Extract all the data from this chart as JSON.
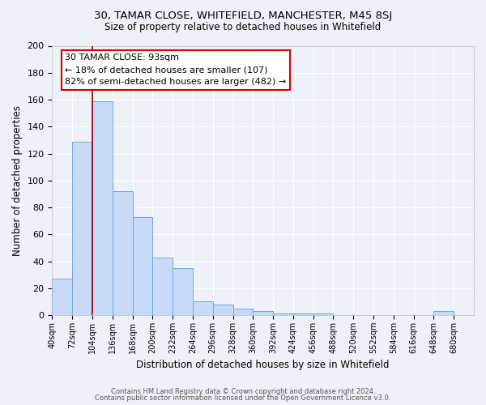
{
  "title1": "30, TAMAR CLOSE, WHITEFIELD, MANCHESTER, M45 8SJ",
  "title2": "Size of property relative to detached houses in Whitefield",
  "xlabel": "Distribution of detached houses by size in Whitefield",
  "ylabel": "Number of detached properties",
  "bar_color": "#c9daf8",
  "bar_edge_color": "#6fa8dc",
  "background_color": "#eef1f8",
  "grid_color": "#ffffff",
  "bins": [
    40,
    72,
    104,
    136,
    168,
    200,
    232,
    264,
    296,
    328,
    360,
    392,
    424,
    456,
    488,
    520,
    552,
    584,
    616,
    648,
    680,
    712
  ],
  "bin_labels": [
    "40sqm",
    "72sqm",
    "104sqm",
    "136sqm",
    "168sqm",
    "200sqm",
    "232sqm",
    "264sqm",
    "296sqm",
    "328sqm",
    "360sqm",
    "392sqm",
    "424sqm",
    "456sqm",
    "488sqm",
    "520sqm",
    "552sqm",
    "584sqm",
    "616sqm",
    "648sqm",
    "680sqm"
  ],
  "values": [
    27,
    129,
    159,
    92,
    73,
    43,
    35,
    10,
    8,
    5,
    3,
    1,
    1,
    1,
    0,
    0,
    0,
    0,
    0,
    3,
    0
  ],
  "vline_x": 104,
  "vline_color": "#990000",
  "annotation_title": "30 TAMAR CLOSE: 93sqm",
  "annotation_line1": "← 18% of detached houses are smaller (107)",
  "annotation_line2": "82% of semi-detached houses are larger (482) →",
  "annotation_box_color": "#ffffff",
  "annotation_box_edge": "#cc0000",
  "footer1": "Contains HM Land Registry data © Crown copyright and database right 2024.",
  "footer2": "Contains public sector information licensed under the Open Government Licence v3.0.",
  "ylim": [
    0,
    200
  ],
  "yticks": [
    0,
    20,
    40,
    60,
    80,
    100,
    120,
    140,
    160,
    180,
    200
  ]
}
